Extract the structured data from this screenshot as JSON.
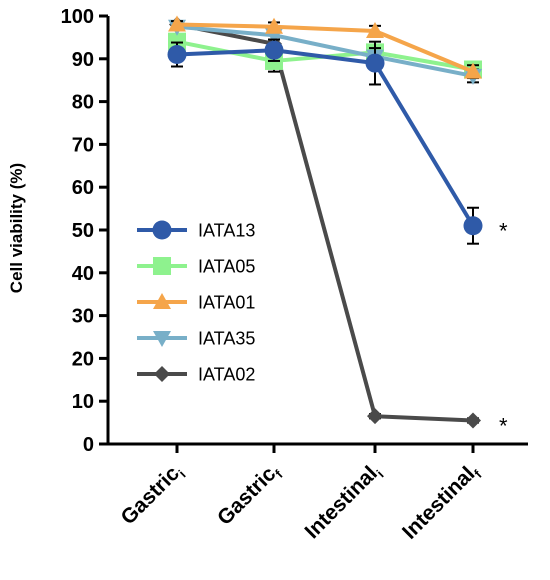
{
  "chart_data": {
    "type": "line",
    "categories": [
      {
        "main": "Gastric",
        "sub": "i"
      },
      {
        "main": "Gastric",
        "sub": "f"
      },
      {
        "main": "Intestinal",
        "sub": "i"
      },
      {
        "main": "Intestinal",
        "sub": "f"
      }
    ],
    "ylabel": "Cell viability (%)",
    "ylim": [
      0,
      100
    ],
    "yticks": [
      0,
      10,
      20,
      30,
      40,
      50,
      60,
      70,
      80,
      90,
      100
    ],
    "legend_position": "left-center",
    "series": [
      {
        "name": "IATA13",
        "color": "#2f5aa8",
        "marker": "circle",
        "values": [
          91,
          92,
          89,
          51
        ],
        "err": [
          2.8,
          2.5,
          5,
          4.2
        ]
      },
      {
        "name": "IATA05",
        "color": "#8ef28e",
        "marker": "square",
        "values": [
          94,
          89.5,
          91.5,
          87.5
        ],
        "err": [
          1.5,
          2.5,
          1.5,
          1.5
        ]
      },
      {
        "name": "IATA01",
        "color": "#f5a54a",
        "marker": "triangle-up",
        "values": [
          98,
          97.5,
          96.5,
          87
        ],
        "err": [
          0.8,
          1,
          1.2,
          1.5
        ]
      },
      {
        "name": "IATA35",
        "color": "#78afc8",
        "marker": "triangle-down",
        "values": [
          97.5,
          95.5,
          90.5,
          86
        ],
        "err": [
          0.8,
          1,
          2,
          1.5
        ]
      },
      {
        "name": "IATA02",
        "color": "#4a4a4a",
        "marker": "diamond",
        "values": [
          98,
          93.5,
          6.5,
          5.5
        ],
        "err": [
          0.5,
          1,
          0.5,
          0.5
        ]
      }
    ],
    "significance": [
      {
        "category_index": 3,
        "series": "IATA13",
        "mark": "*"
      },
      {
        "category_index": 3,
        "series": "IATA02",
        "mark": "*"
      }
    ]
  }
}
